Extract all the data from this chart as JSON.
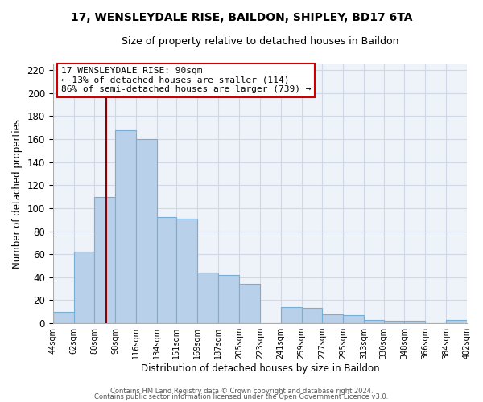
{
  "title": "17, WENSLEYDALE RISE, BAILDON, SHIPLEY, BD17 6TA",
  "subtitle": "Size of property relative to detached houses in Baildon",
  "xlabel": "Distribution of detached houses by size in Baildon",
  "ylabel": "Number of detached properties",
  "bins": [
    44,
    62,
    80,
    98,
    116,
    134,
    151,
    169,
    187,
    205,
    223,
    241,
    259,
    277,
    295,
    313,
    330,
    348,
    366,
    384,
    402
  ],
  "bar_heights": [
    10,
    62,
    110,
    168,
    160,
    92,
    91,
    44,
    42,
    34,
    0,
    14,
    13,
    8,
    7,
    3,
    2,
    2,
    0,
    3
  ],
  "bar_color": "#b8d0ea",
  "bar_edgecolor": "#7aadd4",
  "xtick_labels": [
    "44sqm",
    "62sqm",
    "80sqm",
    "98sqm",
    "116sqm",
    "134sqm",
    "151sqm",
    "169sqm",
    "187sqm",
    "205sqm",
    "223sqm",
    "241sqm",
    "259sqm",
    "277sqm",
    "295sqm",
    "313sqm",
    "330sqm",
    "348sqm",
    "366sqm",
    "384sqm",
    "402sqm"
  ],
  "ylim": [
    0,
    225
  ],
  "yticks": [
    0,
    20,
    40,
    60,
    80,
    100,
    120,
    140,
    160,
    180,
    200,
    220
  ],
  "property_line_x": 90,
  "annotation_line1": "17 WENSLEYDALE RISE: 90sqm",
  "annotation_line2": "← 13% of detached houses are smaller (114)",
  "annotation_line3": "86% of semi-detached houses are larger (739) →",
  "footer1": "Contains HM Land Registry data © Crown copyright and database right 2024.",
  "footer2": "Contains public sector information licensed under the Open Government Licence v3.0.",
  "bg_color": "#eef2f9",
  "grid_color": "#d0d8e8",
  "fig_bg_color": "#ffffff"
}
